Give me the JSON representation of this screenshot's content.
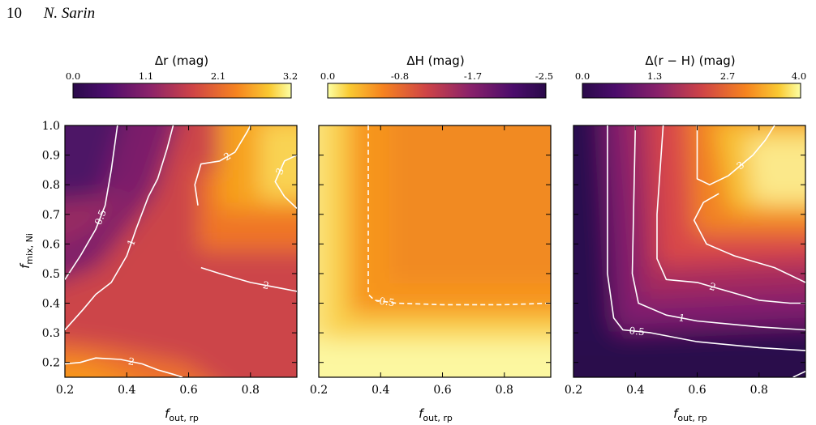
{
  "header": {
    "page_number": "10",
    "author": "N. Sarin"
  },
  "chart_data": [
    {
      "type": "heatmap",
      "panel": "left",
      "colorbar": {
        "label": "Δr (mag)",
        "ticks": [
          "0.0",
          "1.1",
          "2.1",
          "3.2"
        ],
        "vmin": 0.0,
        "vmax": 3.2,
        "colormap": "inferno"
      },
      "xlabel": "f_out,rp",
      "ylabel": "f_mix,Ni",
      "xlim": [
        0.2,
        0.95
      ],
      "ylim": [
        0.15,
        1.0
      ],
      "xticks": [
        "0.2",
        "0.4",
        "0.6",
        "0.8"
      ],
      "yticks": [
        "0.2",
        "0.3",
        "0.4",
        "0.5",
        "0.6",
        "0.7",
        "0.8",
        "0.9",
        "1.0"
      ],
      "contours": [
        {
          "level": "0.5",
          "points": [
            [
              0.2,
              0.48
            ],
            [
              0.25,
              0.56
            ],
            [
              0.3,
              0.65
            ],
            [
              0.33,
              0.73
            ],
            [
              0.35,
              0.85
            ],
            [
              0.37,
              1.0
            ]
          ]
        },
        {
          "level": "1",
          "points": [
            [
              0.2,
              0.31
            ],
            [
              0.26,
              0.38
            ],
            [
              0.3,
              0.43
            ],
            [
              0.35,
              0.47
            ],
            [
              0.4,
              0.56
            ],
            [
              0.43,
              0.65
            ],
            [
              0.47,
              0.76
            ],
            [
              0.5,
              0.82
            ],
            [
              0.53,
              0.92
            ],
            [
              0.55,
              1.0
            ]
          ]
        },
        {
          "level": "2",
          "points": [
            [
              0.63,
              0.73
            ],
            [
              0.62,
              0.8
            ],
            [
              0.64,
              0.87
            ],
            [
              0.7,
              0.88
            ],
            [
              0.75,
              0.91
            ],
            [
              0.79,
              0.98
            ],
            [
              0.8,
              1.0
            ]
          ]
        },
        {
          "level": "2",
          "points": [
            [
              0.64,
              0.52
            ],
            [
              0.7,
              0.5
            ],
            [
              0.8,
              0.47
            ],
            [
              0.9,
              0.45
            ],
            [
              0.95,
              0.44
            ]
          ]
        },
        {
          "level": "3",
          "points": [
            [
              0.95,
              0.72
            ],
            [
              0.91,
              0.76
            ],
            [
              0.88,
              0.81
            ],
            [
              0.91,
              0.88
            ],
            [
              0.95,
              0.9
            ]
          ]
        },
        {
          "level": "2",
          "points": [
            [
              0.2,
              0.195
            ],
            [
              0.25,
              0.2
            ],
            [
              0.3,
              0.215
            ],
            [
              0.38,
              0.21
            ],
            [
              0.45,
              0.195
            ],
            [
              0.5,
              0.175
            ],
            [
              0.55,
              0.16
            ],
            [
              0.58,
              0.15
            ]
          ]
        }
      ]
    },
    {
      "type": "heatmap",
      "panel": "middle",
      "colorbar": {
        "label": "ΔH (mag)",
        "ticks": [
          "0.0",
          "-0.8",
          "-1.7",
          "-2.5"
        ],
        "vmin": 0.0,
        "vmax": -2.5,
        "colormap": "inferno_r"
      },
      "xlabel": "f_out,rp",
      "xlim": [
        0.2,
        0.95
      ],
      "ylim": [
        0.15,
        1.0
      ],
      "xticks": [
        "0.2",
        "0.4",
        "0.6",
        "0.8"
      ],
      "contours": [
        {
          "level": "-0.5",
          "dashed": true,
          "points": [
            [
              0.36,
              1.0
            ],
            [
              0.36,
              0.6
            ],
            [
              0.36,
              0.43
            ],
            [
              0.38,
              0.41
            ],
            [
              0.45,
              0.4
            ],
            [
              0.6,
              0.395
            ],
            [
              0.8,
              0.395
            ],
            [
              0.95,
              0.4
            ]
          ]
        }
      ]
    },
    {
      "type": "heatmap",
      "panel": "right",
      "colorbar": {
        "label": "Δ(r − H) (mag)",
        "ticks": [
          "0.0",
          "1.3",
          "2.7",
          "4.0"
        ],
        "vmin": 0.0,
        "vmax": 4.0,
        "colormap": "inferno"
      },
      "xlabel": "f_out,rp",
      "xlim": [
        0.2,
        0.95
      ],
      "ylim": [
        0.15,
        1.0
      ],
      "xticks": [
        "0.2",
        "0.4",
        "0.6",
        "0.8"
      ],
      "contours": [
        {
          "level": "0.5",
          "points": [
            [
              0.31,
              1.0
            ],
            [
              0.31,
              0.5
            ],
            [
              0.33,
              0.35
            ],
            [
              0.36,
              0.31
            ],
            [
              0.45,
              0.3
            ],
            [
              0.6,
              0.27
            ],
            [
              0.8,
              0.25
            ],
            [
              0.95,
              0.24
            ]
          ]
        },
        {
          "level": "1",
          "points": [
            [
              0.4,
              1.0
            ],
            [
              0.39,
              0.5
            ],
            [
              0.41,
              0.4
            ],
            [
              0.5,
              0.36
            ],
            [
              0.6,
              0.34
            ],
            [
              0.8,
              0.32
            ],
            [
              0.95,
              0.31
            ]
          ]
        },
        {
          "level": "2",
          "points": [
            [
              0.49,
              1.0
            ],
            [
              0.47,
              0.7
            ],
            [
              0.47,
              0.55
            ],
            [
              0.5,
              0.48
            ],
            [
              0.6,
              0.47
            ],
            [
              0.7,
              0.44
            ],
            [
              0.8,
              0.41
            ],
            [
              0.9,
              0.4
            ],
            [
              0.95,
              0.4
            ]
          ]
        },
        {
          "level": "3",
          "points": [
            [
              0.6,
              1.0
            ],
            [
              0.6,
              0.82
            ],
            [
              0.64,
              0.8
            ],
            [
              0.7,
              0.83
            ],
            [
              0.78,
              0.9
            ],
            [
              0.82,
              0.95
            ],
            [
              0.85,
              1.0
            ]
          ]
        },
        {
          "level": "",
          "points": [
            [
              0.95,
              0.47
            ],
            [
              0.85,
              0.52
            ],
            [
              0.72,
              0.56
            ],
            [
              0.63,
              0.6
            ],
            [
              0.59,
              0.68
            ],
            [
              0.62,
              0.74
            ],
            [
              0.67,
              0.77
            ]
          ]
        },
        {
          "level": "",
          "points": [
            [
              0.91,
              0.15
            ],
            [
              0.93,
              0.16
            ],
            [
              0.95,
              0.17
            ]
          ]
        }
      ]
    }
  ]
}
